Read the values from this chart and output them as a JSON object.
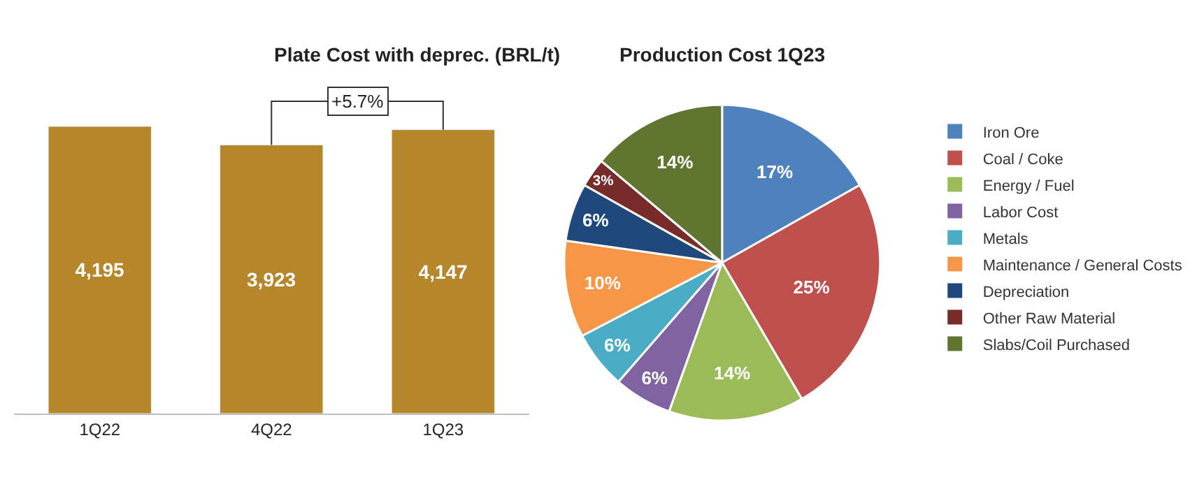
{
  "chart_data": [
    {
      "type": "bar",
      "title": "Plate Cost with deprec. (BRL/t)",
      "categories": [
        "1Q22",
        "4Q22",
        "1Q23"
      ],
      "values": [
        4195,
        3923,
        4147
      ],
      "color": "#b5862a",
      "value_labels": [
        "4,195",
        "3,923",
        "4,147"
      ],
      "tick_labels": "x",
      "annotations": [
        "+5.7%"
      ]
    },
    {
      "type": "pie",
      "title": "Production Cost 1Q23",
      "categories": [
        "Iron Ore",
        "Coal / Coke",
        "Energy / Fuel",
        "Labor Cost",
        "Metals",
        "Maintenance / General Costs",
        "Depreciation",
        "Other Raw Material",
        "Slabs/Coil Purchased"
      ],
      "values": [
        17,
        25,
        14,
        6,
        6,
        10,
        6,
        3,
        14
      ],
      "colors": [
        "#4f81bd",
        "#c0504d",
        "#9bbb59",
        "#8064a2",
        "#4bacc6",
        "#f79646",
        "#1f497d",
        "#772c2a",
        "#5f7530"
      ],
      "value_labels": [
        "17%",
        "25%",
        "14%",
        "6%",
        "6%",
        "10%",
        "6%",
        "3%",
        "14%"
      ],
      "legend": "right"
    }
  ]
}
